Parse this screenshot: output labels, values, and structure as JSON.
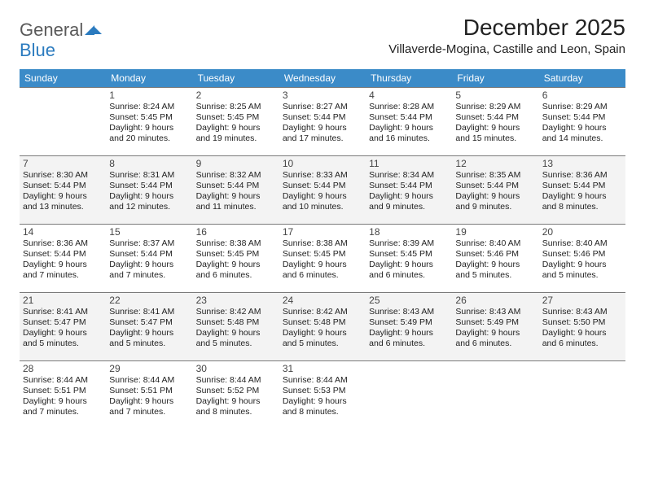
{
  "logo": {
    "text1": "General",
    "text2": "Blue"
  },
  "title": "December 2025",
  "location": "Villaverde-Mogina, Castille and Leon, Spain",
  "day_headers": [
    "Sunday",
    "Monday",
    "Tuesday",
    "Wednesday",
    "Thursday",
    "Friday",
    "Saturday"
  ],
  "colors": {
    "header_bg": "#3b8bc8",
    "header_text": "#ffffff",
    "shaded_bg": "#f3f3f3",
    "border": "#7a7a7a"
  },
  "start_offset": 1,
  "days": [
    {
      "n": "1",
      "sunrise": "8:24 AM",
      "sunset": "5:45 PM",
      "daylight": "9 hours and 20 minutes."
    },
    {
      "n": "2",
      "sunrise": "8:25 AM",
      "sunset": "5:45 PM",
      "daylight": "9 hours and 19 minutes."
    },
    {
      "n": "3",
      "sunrise": "8:27 AM",
      "sunset": "5:44 PM",
      "daylight": "9 hours and 17 minutes."
    },
    {
      "n": "4",
      "sunrise": "8:28 AM",
      "sunset": "5:44 PM",
      "daylight": "9 hours and 16 minutes."
    },
    {
      "n": "5",
      "sunrise": "8:29 AM",
      "sunset": "5:44 PM",
      "daylight": "9 hours and 15 minutes."
    },
    {
      "n": "6",
      "sunrise": "8:29 AM",
      "sunset": "5:44 PM",
      "daylight": "9 hours and 14 minutes."
    },
    {
      "n": "7",
      "sunrise": "8:30 AM",
      "sunset": "5:44 PM",
      "daylight": "9 hours and 13 minutes."
    },
    {
      "n": "8",
      "sunrise": "8:31 AM",
      "sunset": "5:44 PM",
      "daylight": "9 hours and 12 minutes."
    },
    {
      "n": "9",
      "sunrise": "8:32 AM",
      "sunset": "5:44 PM",
      "daylight": "9 hours and 11 minutes."
    },
    {
      "n": "10",
      "sunrise": "8:33 AM",
      "sunset": "5:44 PM",
      "daylight": "9 hours and 10 minutes."
    },
    {
      "n": "11",
      "sunrise": "8:34 AM",
      "sunset": "5:44 PM",
      "daylight": "9 hours and 9 minutes."
    },
    {
      "n": "12",
      "sunrise": "8:35 AM",
      "sunset": "5:44 PM",
      "daylight": "9 hours and 9 minutes."
    },
    {
      "n": "13",
      "sunrise": "8:36 AM",
      "sunset": "5:44 PM",
      "daylight": "9 hours and 8 minutes."
    },
    {
      "n": "14",
      "sunrise": "8:36 AM",
      "sunset": "5:44 PM",
      "daylight": "9 hours and 7 minutes."
    },
    {
      "n": "15",
      "sunrise": "8:37 AM",
      "sunset": "5:44 PM",
      "daylight": "9 hours and 7 minutes."
    },
    {
      "n": "16",
      "sunrise": "8:38 AM",
      "sunset": "5:45 PM",
      "daylight": "9 hours and 6 minutes."
    },
    {
      "n": "17",
      "sunrise": "8:38 AM",
      "sunset": "5:45 PM",
      "daylight": "9 hours and 6 minutes."
    },
    {
      "n": "18",
      "sunrise": "8:39 AM",
      "sunset": "5:45 PM",
      "daylight": "9 hours and 6 minutes."
    },
    {
      "n": "19",
      "sunrise": "8:40 AM",
      "sunset": "5:46 PM",
      "daylight": "9 hours and 5 minutes."
    },
    {
      "n": "20",
      "sunrise": "8:40 AM",
      "sunset": "5:46 PM",
      "daylight": "9 hours and 5 minutes."
    },
    {
      "n": "21",
      "sunrise": "8:41 AM",
      "sunset": "5:47 PM",
      "daylight": "9 hours and 5 minutes."
    },
    {
      "n": "22",
      "sunrise": "8:41 AM",
      "sunset": "5:47 PM",
      "daylight": "9 hours and 5 minutes."
    },
    {
      "n": "23",
      "sunrise": "8:42 AM",
      "sunset": "5:48 PM",
      "daylight": "9 hours and 5 minutes."
    },
    {
      "n": "24",
      "sunrise": "8:42 AM",
      "sunset": "5:48 PM",
      "daylight": "9 hours and 5 minutes."
    },
    {
      "n": "25",
      "sunrise": "8:43 AM",
      "sunset": "5:49 PM",
      "daylight": "9 hours and 6 minutes."
    },
    {
      "n": "26",
      "sunrise": "8:43 AM",
      "sunset": "5:49 PM",
      "daylight": "9 hours and 6 minutes."
    },
    {
      "n": "27",
      "sunrise": "8:43 AM",
      "sunset": "5:50 PM",
      "daylight": "9 hours and 6 minutes."
    },
    {
      "n": "28",
      "sunrise": "8:44 AM",
      "sunset": "5:51 PM",
      "daylight": "9 hours and 7 minutes."
    },
    {
      "n": "29",
      "sunrise": "8:44 AM",
      "sunset": "5:51 PM",
      "daylight": "9 hours and 7 minutes."
    },
    {
      "n": "30",
      "sunrise": "8:44 AM",
      "sunset": "5:52 PM",
      "daylight": "9 hours and 8 minutes."
    },
    {
      "n": "31",
      "sunrise": "8:44 AM",
      "sunset": "5:53 PM",
      "daylight": "9 hours and 8 minutes."
    }
  ],
  "labels": {
    "sunrise": "Sunrise:",
    "sunset": "Sunset:",
    "daylight": "Daylight:"
  }
}
